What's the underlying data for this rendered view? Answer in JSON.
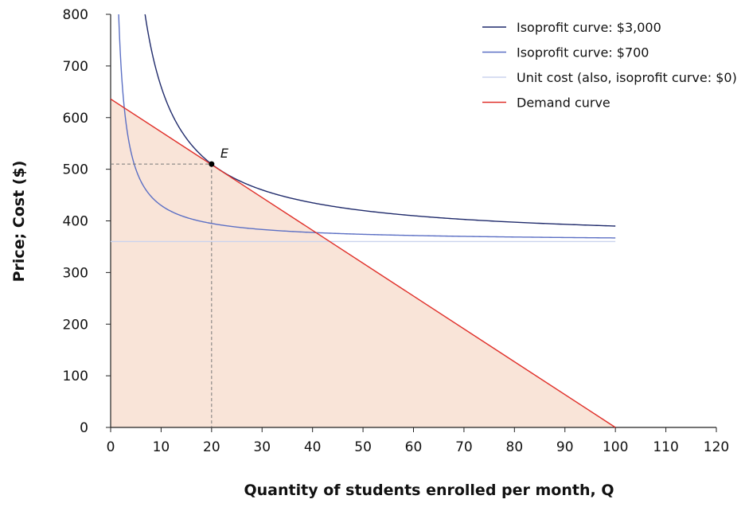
{
  "chart_data": {
    "type": "line",
    "title": "",
    "xlabel": "Quantity of students enrolled per month, Q",
    "ylabel": "Price; Cost ($)",
    "xlim": [
      0,
      120
    ],
    "ylim": [
      0,
      800
    ],
    "xticks": [
      0,
      10,
      20,
      30,
      40,
      50,
      60,
      70,
      80,
      90,
      100,
      110,
      120
    ],
    "yticks": [
      0,
      100,
      200,
      300,
      400,
      500,
      600,
      700,
      800
    ],
    "grid": false,
    "legend_position": "top-right",
    "unit_cost": 360,
    "series": [
      {
        "name": "Isoprofit curve: $3,000",
        "kind": "isoprofit",
        "profit": 3000,
        "x_range": [
          0,
          100
        ],
        "color": "#1f2a6b"
      },
      {
        "name": "Isoprofit curve: $700",
        "kind": "isoprofit",
        "profit": 700,
        "x_range": [
          0,
          100
        ],
        "color": "#5b6fc4"
      },
      {
        "name": "Unit cost (also, isoprofit curve: $0)",
        "kind": "flat",
        "y": 360,
        "x_range": [
          0,
          100
        ],
        "color": "#cbd3ee"
      },
      {
        "name": "Demand curve",
        "kind": "line",
        "points": [
          [
            0,
            636
          ],
          [
            100,
            0
          ]
        ],
        "color": "#e0302a"
      }
    ],
    "shaded_region": {
      "under": "Demand curve",
      "color": "#f9e4d8"
    },
    "annotations": [
      {
        "label": "E",
        "x": 20,
        "y": 510
      }
    ]
  }
}
